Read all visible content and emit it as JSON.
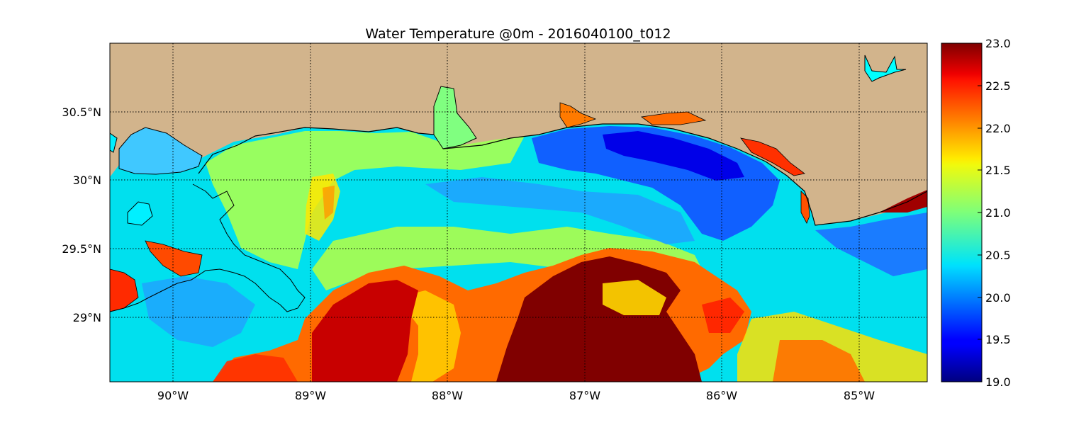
{
  "title": "Water Temperature @0m - 2016040100_t012",
  "map": {
    "lon_range": [
      -90.5,
      -84.5
    ],
    "lat_range": [
      28.55,
      31.0
    ],
    "land_color": "#d2b48c",
    "coast_color": "#000000",
    "grid": true,
    "lon_ticks": [
      {
        "value": -90,
        "label": "90°W"
      },
      {
        "value": -89,
        "label": "89°W"
      },
      {
        "value": -88,
        "label": "88°W"
      },
      {
        "value": -87,
        "label": "87°W"
      },
      {
        "value": -86,
        "label": "86°W"
      },
      {
        "value": -85,
        "label": "85°W"
      }
    ],
    "lat_ticks": [
      {
        "value": 30.5,
        "label": "30.5°N"
      },
      {
        "value": 30.0,
        "label": "30°N"
      },
      {
        "value": 29.5,
        "label": "29.5°N"
      },
      {
        "value": 29.0,
        "label": "29°N"
      }
    ]
  },
  "colorbar": {
    "colormap": "jet",
    "min": 19.0,
    "max": 23.0,
    "ticks": [
      "19.0",
      "19.5",
      "20.0",
      "20.5",
      "21.0",
      "21.5",
      "22.0",
      "22.5",
      "23.0"
    ]
  }
}
